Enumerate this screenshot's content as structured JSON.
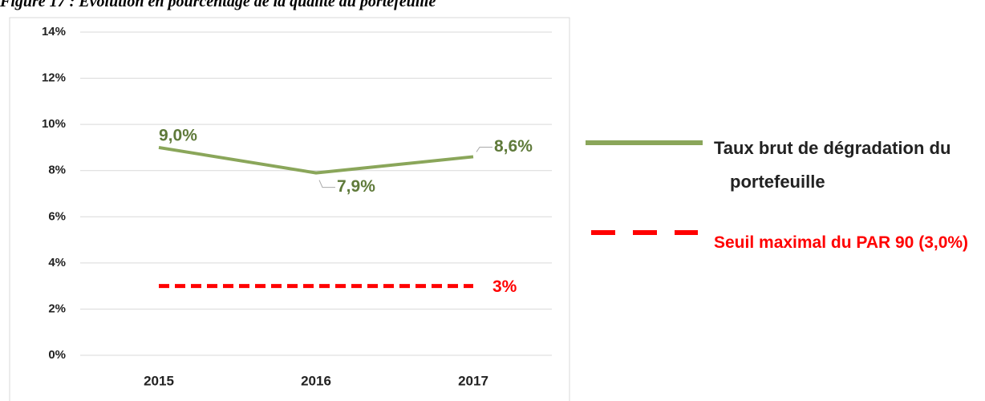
{
  "chart_data": {
    "type": "line",
    "title": "Figure 17 : Evolution en pourcentage de la qualité du portefeuille",
    "categories": [
      "2015",
      "2016",
      "2017"
    ],
    "series": [
      {
        "name": "Taux brut de dégradation du portefeuille",
        "color": "#8aa65a",
        "style": "solid",
        "values": [
          9.0,
          7.9,
          8.6
        ],
        "value_labels": [
          "9,0%",
          "7,9%",
          "8,6%"
        ]
      },
      {
        "name": "Seuil maximal du PAR 90 (3,0%)",
        "color": "#ff0000",
        "style": "dashed",
        "values": [
          3,
          3,
          3
        ],
        "value_labels": [
          null,
          null,
          "3%"
        ]
      }
    ],
    "ylim": [
      0,
      14
    ],
    "yticks": [
      {
        "value": 0,
        "label": "0%"
      },
      {
        "value": 2,
        "label": "2%"
      },
      {
        "value": 4,
        "label": "4%"
      },
      {
        "value": 6,
        "label": "6%"
      },
      {
        "value": 8,
        "label": "8%"
      },
      {
        "value": 10,
        "label": "10%"
      },
      {
        "value": 12,
        "label": "12%"
      },
      {
        "value": 14,
        "label": "14%"
      }
    ],
    "grid": true
  }
}
